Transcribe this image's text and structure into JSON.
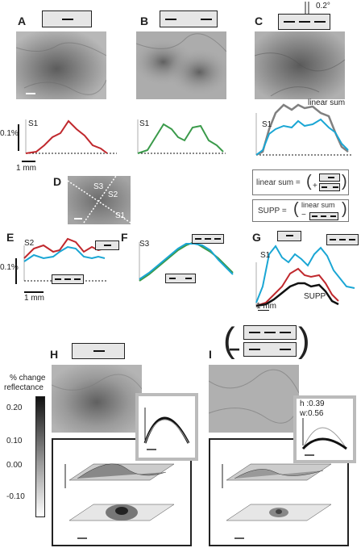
{
  "panels": {
    "A": "A",
    "B": "B",
    "C": "C",
    "D": "D",
    "E": "E",
    "F": "F",
    "G": "G",
    "H": "H",
    "I": "I"
  },
  "angle_label": "0.2°",
  "trace_labels": {
    "A": "S1",
    "B": "S1",
    "C": "S1",
    "E": "S2",
    "F": "S3",
    "G": "S1"
  },
  "percent_label": "0.1%",
  "scale_1mm": "1 mm",
  "linear_sum_label": "linear sum",
  "supp_label": "SUPP",
  "eq1_left": "linear sum =",
  "eq1_plus": "+",
  "eq2_left": "SUPP =",
  "eq2_top": "linear sum",
  "eq2_minus": "−",
  "slice_labels": [
    "S3",
    "S2",
    "S1"
  ],
  "colorbar": {
    "title1": "% change",
    "title2": "reflectance",
    "ticks": [
      "0.20",
      "0.10",
      "0.00",
      "-0.10"
    ]
  },
  "fit_labels": {
    "h": "h :0.39",
    "w": "w:0.56"
  },
  "colors": {
    "red": "#c0282d",
    "green": "#3a9a4a",
    "cyan": "#1aa6d4",
    "gray": "#808080",
    "black": "#111111"
  }
}
